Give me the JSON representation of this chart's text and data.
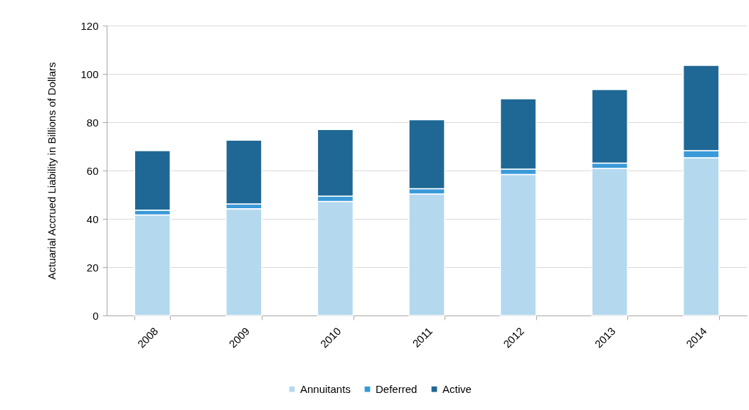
{
  "chart_data": {
    "type": "bar",
    "ylabel": "Actuarial Accrued Liability in Billions of Dollars",
    "categories": [
      "2008",
      "2009",
      "2010",
      "2011",
      "2012",
      "2013",
      "2014"
    ],
    "series": [
      {
        "name": "Annuitants",
        "color": "#b4d9ef",
        "values": [
          41.6,
          44.2,
          47.2,
          50.3,
          58.4,
          60.9,
          65.3
        ]
      },
      {
        "name": "Deferred",
        "color": "#3a9ad9",
        "values": [
          2.0,
          2.0,
          2.2,
          2.2,
          2.2,
          2.2,
          2.9
        ]
      },
      {
        "name": "Active",
        "color": "#1f6895",
        "values": [
          24.6,
          26.4,
          27.6,
          28.5,
          29.1,
          30.4,
          35.3
        ]
      }
    ],
    "stacked": true,
    "ylim": [
      0,
      120
    ],
    "yticks": [
      0,
      20,
      40,
      60,
      80,
      100,
      120
    ],
    "grid": "y",
    "legend": "bottom"
  }
}
